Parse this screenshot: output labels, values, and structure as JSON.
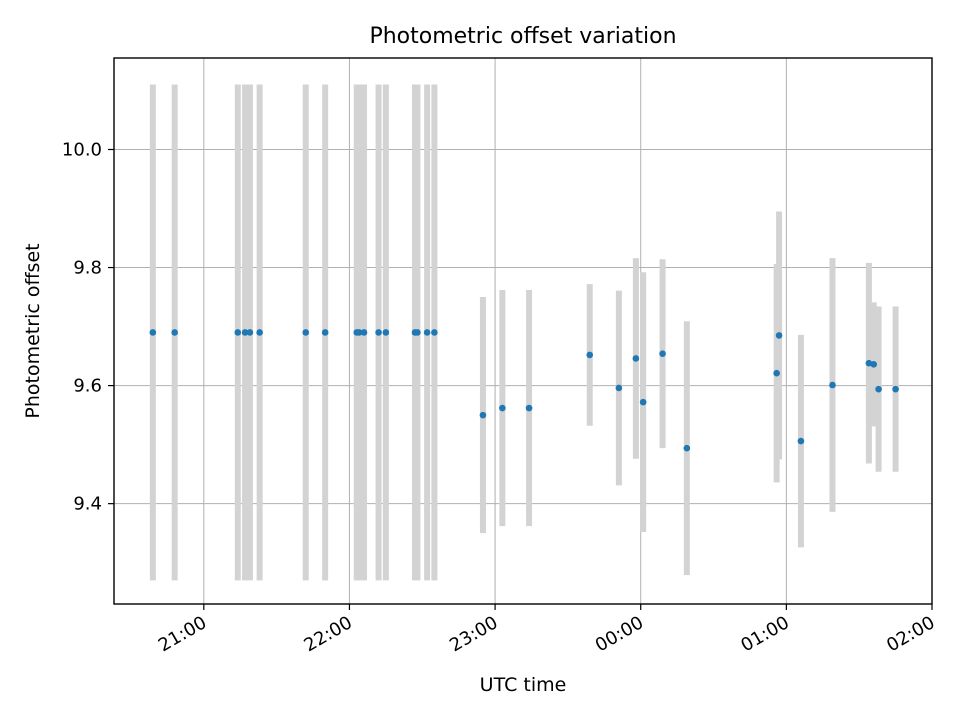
{
  "chart_data": {
    "type": "scatter",
    "title": "Photometric offset variation",
    "xlabel": "UTC time",
    "ylabel": "Photometric offset",
    "x_axis_type": "time",
    "xlim": [
      "20:23",
      "02:00"
    ],
    "ylim": [
      9.23,
      10.155
    ],
    "x_ticks": [
      "21:00",
      "22:00",
      "23:00",
      "00:00",
      "01:00",
      "02:00"
    ],
    "y_ticks": [
      9.4,
      9.6,
      9.8,
      10.0
    ],
    "y_tick_labels": [
      "9.4",
      "9.6",
      "9.8",
      "10.0"
    ],
    "grid": true,
    "legend": false,
    "colors": {
      "points": "#1f77b4",
      "error_bars": "#d3d3d3"
    },
    "series": [
      {
        "points": [
          {
            "x": "20:39",
            "y": 9.69,
            "err": 0.42
          },
          {
            "x": "20:48",
            "y": 9.69,
            "err": 0.42
          },
          {
            "x": "21:14",
            "y": 9.69,
            "err": 0.42
          },
          {
            "x": "21:17",
            "y": 9.69,
            "err": 0.42
          },
          {
            "x": "21:19",
            "y": 9.69,
            "err": 0.42
          },
          {
            "x": "21:23",
            "y": 9.69,
            "err": 0.42
          },
          {
            "x": "21:42",
            "y": 9.69,
            "err": 0.42
          },
          {
            "x": "21:50",
            "y": 9.69,
            "err": 0.42
          },
          {
            "x": "22:03",
            "y": 9.69,
            "err": 0.42
          },
          {
            "x": "22:04",
            "y": 9.69,
            "err": 0.42
          },
          {
            "x": "22:06",
            "y": 9.69,
            "err": 0.42
          },
          {
            "x": "22:12",
            "y": 9.69,
            "err": 0.42
          },
          {
            "x": "22:15",
            "y": 9.69,
            "err": 0.42
          },
          {
            "x": "22:27",
            "y": 9.69,
            "err": 0.42
          },
          {
            "x": "22:28",
            "y": 9.69,
            "err": 0.42
          },
          {
            "x": "22:32",
            "y": 9.69,
            "err": 0.42
          },
          {
            "x": "22:35",
            "y": 9.69,
            "err": 0.42
          },
          {
            "x": "22:55",
            "y": 9.55,
            "err": 0.2
          },
          {
            "x": "23:03",
            "y": 9.562,
            "err": 0.2
          },
          {
            "x": "23:14",
            "y": 9.562,
            "err": 0.2
          },
          {
            "x": "23:39",
            "y": 9.652,
            "err": 0.12
          },
          {
            "x": "23:51",
            "y": 9.596,
            "err": 0.165
          },
          {
            "x": "23:58",
            "y": 9.646,
            "err": 0.17
          },
          {
            "x": "00:01",
            "y": 9.572,
            "err": 0.22
          },
          {
            "x": "00:09",
            "y": 9.654,
            "err": 0.16
          },
          {
            "x": "00:19",
            "y": 9.494,
            "err": 0.215
          },
          {
            "x": "00:56",
            "y": 9.621,
            "err": 0.185
          },
          {
            "x": "00:57",
            "y": 9.685,
            "err": 0.21
          },
          {
            "x": "01:06",
            "y": 9.506,
            "err": 0.18
          },
          {
            "x": "01:19",
            "y": 9.601,
            "err": 0.215
          },
          {
            "x": "01:34",
            "y": 9.638,
            "err": 0.17
          },
          {
            "x": "01:36",
            "y": 9.636,
            "err": 0.105
          },
          {
            "x": "01:38",
            "y": 9.594,
            "err": 0.14
          },
          {
            "x": "01:45",
            "y": 9.594,
            "err": 0.14
          }
        ]
      }
    ]
  }
}
